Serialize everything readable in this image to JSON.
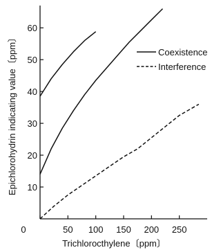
{
  "chart_data": {
    "type": "line",
    "title": "",
    "xlabel": "Trichlorocthylene〔ppm〕",
    "ylabel": "Epichlorohydrin indicating value〔ppm〕",
    "xlim": [
      0,
      300
    ],
    "ylim": [
      0,
      67
    ],
    "x_ticks": [
      "0",
      "50",
      "100",
      "150",
      "200",
      "250"
    ],
    "x_tick_values": [
      0,
      50,
      100,
      150,
      200,
      250
    ],
    "y_ticks": [
      "10",
      "20",
      "30",
      "40",
      "50",
      "60"
    ],
    "y_tick_values": [
      10,
      20,
      30,
      40,
      50,
      60
    ],
    "grid": false,
    "legend_position": "top-right",
    "legend": [
      {
        "label": "Coexistence",
        "style": "solid"
      },
      {
        "label": "Interference",
        "style": "dashed"
      }
    ],
    "series": [
      {
        "style": "solid",
        "points": [
          [
            0,
            38.5
          ],
          [
            20,
            44
          ],
          [
            40,
            48.5
          ],
          [
            60,
            52.5
          ],
          [
            80,
            56
          ],
          [
            100,
            58.8
          ]
        ]
      },
      {
        "style": "solid",
        "points": [
          [
            0,
            14
          ],
          [
            20,
            22
          ],
          [
            40,
            28.5
          ],
          [
            60,
            34
          ],
          [
            80,
            39
          ],
          [
            100,
            43.5
          ],
          [
            120,
            47.5
          ],
          [
            140,
            51.5
          ],
          [
            160,
            55.5
          ],
          [
            180,
            59
          ],
          [
            200,
            62.5
          ],
          [
            220,
            66
          ]
        ]
      },
      {
        "style": "dashed",
        "points": [
          [
            0,
            0
          ],
          [
            25,
            4
          ],
          [
            50,
            7.5
          ],
          [
            75,
            10.5
          ],
          [
            100,
            13.5
          ],
          [
            125,
            16.5
          ],
          [
            150,
            19.5
          ],
          [
            175,
            22
          ],
          [
            200,
            25.5
          ],
          [
            225,
            29
          ],
          [
            250,
            32.5
          ],
          [
            285,
            36
          ]
        ]
      }
    ],
    "colors": {
      "line": "#111111",
      "axis": "#111111"
    }
  }
}
